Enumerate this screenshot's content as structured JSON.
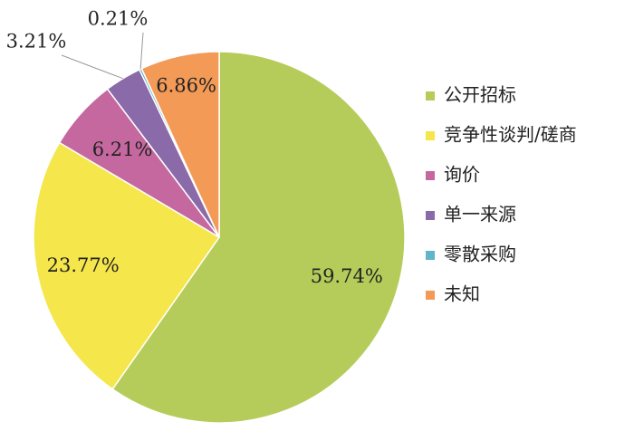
{
  "chart_data": {
    "type": "pie",
    "categories": [
      "公开招标",
      "竞争性谈判/磋商",
      "询价",
      "单一来源",
      "零散采购",
      "未知"
    ],
    "values": [
      59.74,
      23.77,
      6.21,
      3.21,
      0.21,
      6.86
    ],
    "value_labels": [
      "59.74%",
      "23.77%",
      "6.21%",
      "3.21%",
      "0.21%",
      "6.86%"
    ],
    "colors": [
      "#b5cc5a",
      "#f5e64c",
      "#c5689f",
      "#8a6aa8",
      "#62b4cb",
      "#f39a57"
    ],
    "legend": "right"
  }
}
